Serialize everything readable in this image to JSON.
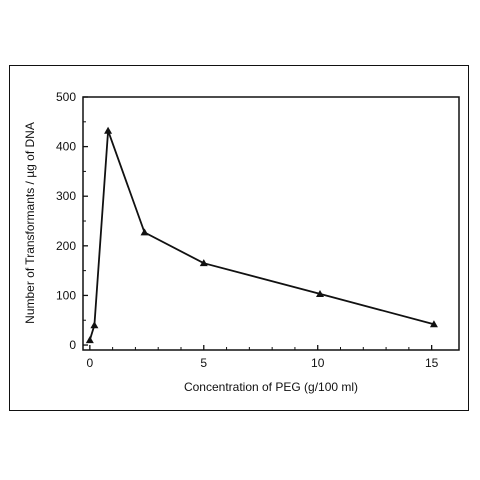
{
  "chart_data": {
    "type": "line",
    "xlabel": "Concentration of PEG (g/100 ml)",
    "ylabel": "Number of Transformants / µg of DNA",
    "xlim": [
      -0.3,
      16.2
    ],
    "ylim": [
      -10,
      500
    ],
    "xticks": [
      0,
      5,
      10,
      15
    ],
    "yticks": [
      0,
      100,
      200,
      300,
      400,
      500
    ],
    "grid": false,
    "marker": "triangle",
    "series": [
      {
        "x": [
          0,
          0.2,
          0.8,
          2.4,
          5.0,
          10.1,
          15.1
        ],
        "y": [
          10,
          40,
          432,
          227,
          165,
          103,
          42
        ]
      }
    ]
  }
}
